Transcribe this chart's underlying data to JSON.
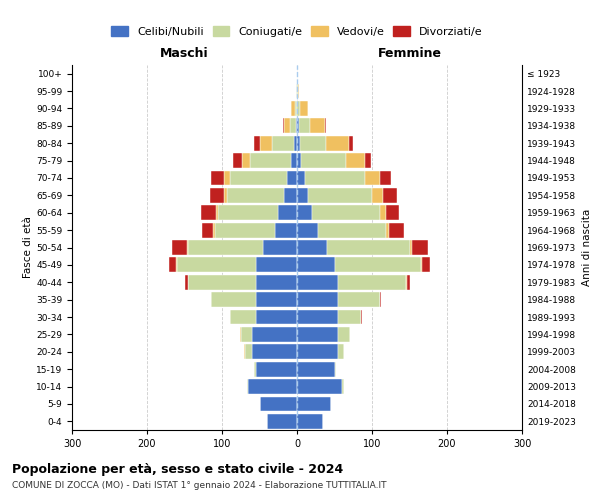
{
  "age_groups": [
    "0-4",
    "5-9",
    "10-14",
    "15-19",
    "20-24",
    "25-29",
    "30-34",
    "35-39",
    "40-44",
    "45-49",
    "50-54",
    "55-59",
    "60-64",
    "65-69",
    "70-74",
    "75-79",
    "80-84",
    "85-89",
    "90-94",
    "95-99",
    "100+"
  ],
  "birth_years": [
    "2019-2023",
    "2014-2018",
    "2009-2013",
    "2004-2008",
    "1999-2003",
    "1994-1998",
    "1989-1993",
    "1984-1988",
    "1979-1983",
    "1974-1978",
    "1969-1973",
    "1964-1968",
    "1959-1963",
    "1954-1958",
    "1949-1953",
    "1944-1948",
    "1939-1943",
    "1934-1938",
    "1929-1933",
    "1924-1928",
    "≤ 1923"
  ],
  "colors": {
    "celibi": "#4472C4",
    "coniugati": "#c8d9a0",
    "vedovi": "#f0c060",
    "divorziati": "#c0211f"
  },
  "males_celibi": [
    40,
    50,
    65,
    55,
    60,
    60,
    55,
    55,
    55,
    55,
    45,
    30,
    25,
    18,
    14,
    8,
    4,
    1,
    0,
    0,
    0
  ],
  "males_coniugati": [
    0,
    0,
    2,
    2,
    10,
    15,
    35,
    60,
    90,
    105,
    100,
    80,
    80,
    75,
    75,
    55,
    30,
    8,
    3,
    1,
    0
  ],
  "males_vedovi": [
    0,
    0,
    0,
    0,
    1,
    1,
    0,
    0,
    0,
    1,
    2,
    2,
    3,
    5,
    8,
    10,
    15,
    8,
    5,
    1,
    0
  ],
  "males_divorziati": [
    0,
    0,
    0,
    0,
    0,
    0,
    0,
    0,
    5,
    10,
    20,
    15,
    20,
    18,
    18,
    12,
    8,
    2,
    0,
    0,
    0
  ],
  "fem_nubili": [
    35,
    45,
    60,
    50,
    55,
    55,
    55,
    55,
    55,
    50,
    40,
    28,
    20,
    15,
    10,
    5,
    4,
    2,
    0,
    0,
    0
  ],
  "fem_coniugate": [
    0,
    0,
    2,
    2,
    8,
    15,
    30,
    55,
    90,
    115,
    110,
    90,
    90,
    85,
    80,
    60,
    35,
    15,
    4,
    1,
    0
  ],
  "fem_vedove": [
    0,
    0,
    0,
    0,
    0,
    0,
    0,
    0,
    1,
    2,
    3,
    5,
    8,
    15,
    20,
    25,
    30,
    20,
    10,
    2,
    0
  ],
  "fem_divorziate": [
    0,
    0,
    0,
    0,
    0,
    0,
    1,
    2,
    5,
    10,
    22,
    20,
    18,
    18,
    15,
    8,
    5,
    2,
    1,
    0,
    0
  ],
  "legend_labels": [
    "Celibi/Nubili",
    "Coniugati/e",
    "Vedovi/e",
    "Divorziati/e"
  ],
  "title1": "Popolazione per età, sesso e stato civile - 2024",
  "title2": "COMUNE DI ZOCCA (MO) - Dati ISTAT 1° gennaio 2024 - Elaborazione TUTTITALIA.IT",
  "maschi_label": "Maschi",
  "femmine_label": "Femmine",
  "ylabel_left": "Fasce di età",
  "ylabel_right": "Anni di nascita",
  "xlim": 300
}
